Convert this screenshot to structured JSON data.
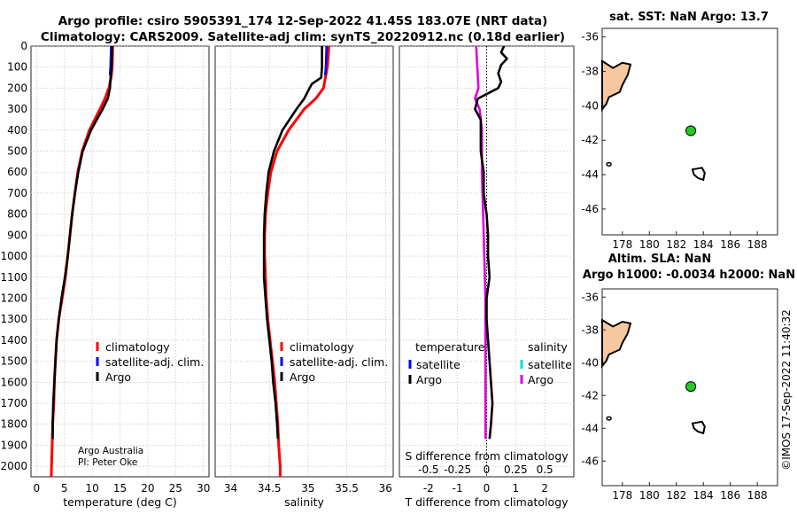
{
  "title": {
    "line1": "Argo profile: csiro 5905391_174 12-Sep-2022 41.45S 183.07E (NRT data)",
    "line2": "Climatology: CARS2009. Satellite-adj clim: synTS_20220912.nc (0.18d earlier)"
  },
  "colors": {
    "argo": "#000000",
    "clim": "#ff0000",
    "sat": "#0000ff",
    "t_diff": "#000000",
    "s_diff": "#dd00dd",
    "s_sat": "#00dddd",
    "land": "#f7c89f",
    "float": "#22cc22"
  },
  "chart_data": [
    {
      "id": "temperature",
      "type": "line",
      "xlabel": "temperature (deg C)",
      "xlim": [
        -1,
        31
      ],
      "xticks": [
        0,
        5,
        10,
        15,
        20,
        25,
        30
      ],
      "ylim": [
        0,
        2050
      ],
      "yticks": [
        0,
        100,
        200,
        300,
        400,
        500,
        600,
        700,
        800,
        900,
        1000,
        1100,
        1200,
        1300,
        1400,
        1500,
        1600,
        1700,
        1800,
        1900,
        2000
      ],
      "legend": [
        "climatology",
        "satellite-adj. clim.",
        "Argo"
      ],
      "note": [
        "Argo Australia",
        "PI: Peter Oke"
      ],
      "series": [
        {
          "name": "climatology",
          "depth": [
            0,
            100,
            150,
            200,
            250,
            300,
            400,
            500,
            600,
            700,
            800,
            900,
            1000,
            1100,
            1200,
            1300,
            1400,
            1500,
            1600,
            1700,
            1800,
            1900,
            2000,
            2050
          ],
          "values": [
            13.7,
            13.6,
            13.4,
            13.0,
            12.3,
            11.4,
            9.5,
            8.2,
            7.4,
            6.9,
            6.4,
            6.0,
            5.6,
            5.2,
            4.6,
            4.0,
            3.6,
            3.4,
            3.2,
            3.1,
            2.9,
            2.8,
            2.7,
            2.65
          ]
        },
        {
          "name": "satellite-adj. clim.",
          "depth": [
            0,
            100,
            140
          ],
          "values": [
            13.4,
            13.3,
            13.2
          ]
        },
        {
          "name": "Argo",
          "depth": [
            0,
            100,
            150,
            200,
            250,
            300,
            400,
            500,
            600,
            700,
            800,
            900,
            1000,
            1100,
            1200,
            1300,
            1400,
            1500,
            1600,
            1700,
            1800,
            1870
          ],
          "values": [
            13.6,
            13.5,
            13.3,
            13.2,
            12.8,
            11.9,
            9.8,
            8.3,
            7.5,
            6.9,
            6.4,
            6.0,
            5.6,
            5.1,
            4.5,
            4.0,
            3.6,
            3.4,
            3.2,
            3.0,
            2.9,
            2.9
          ]
        }
      ]
    },
    {
      "id": "salinity",
      "type": "line",
      "xlabel": "salinity",
      "xlim": [
        33.8,
        36.1
      ],
      "xticks": [
        34,
        34.5,
        35,
        35.5,
        36
      ],
      "ylim": [
        0,
        2050
      ],
      "legend": [
        "climatology",
        "satellite-adj. clim.",
        "Argo"
      ],
      "series": [
        {
          "name": "climatology",
          "depth": [
            0,
            100,
            200,
            250,
            300,
            400,
            500,
            600,
            700,
            800,
            900,
            1000,
            1100,
            1200,
            1300,
            1400,
            1500,
            1600,
            1700,
            1800,
            1900,
            2000,
            2050
          ],
          "values": [
            35.27,
            35.25,
            35.2,
            35.1,
            34.95,
            34.75,
            34.6,
            34.52,
            34.48,
            34.45,
            34.44,
            34.44,
            34.45,
            34.46,
            34.48,
            34.51,
            34.54,
            34.57,
            34.59,
            34.61,
            34.62,
            34.64,
            34.64
          ]
        },
        {
          "name": "satellite-adj. clim.",
          "depth": [
            0,
            100,
            140
          ],
          "values": [
            35.24,
            35.23,
            35.22
          ]
        },
        {
          "name": "Argo",
          "depth": [
            0,
            100,
            150,
            180,
            200,
            250,
            300,
            400,
            500,
            600,
            700,
            800,
            900,
            1000,
            1100,
            1200,
            1300,
            1400,
            1500,
            1600,
            1700,
            1800,
            1870
          ],
          "values": [
            35.18,
            35.18,
            35.17,
            35.05,
            35.02,
            34.95,
            34.85,
            34.67,
            34.56,
            34.49,
            34.46,
            34.44,
            34.43,
            34.43,
            34.43,
            34.45,
            34.47,
            34.5,
            34.53,
            34.55,
            34.58,
            34.6,
            34.61
          ]
        }
      ]
    },
    {
      "id": "difference",
      "type": "line",
      "xlabel": "T difference from climatology",
      "x2label": "S difference from climatology",
      "xlim": [
        -3,
        3
      ],
      "xticks": [
        -2,
        -1,
        0,
        1,
        2
      ],
      "x2ticks": [
        "-0.5",
        "-0.25",
        "0",
        "0.25",
        "0.5"
      ],
      "x2tick_values": [
        -0.5,
        -0.25,
        0,
        0.25,
        0.5
      ],
      "x2lim": [
        -0.75,
        0.75
      ],
      "ylim": [
        0,
        2050
      ],
      "legend_t_title": "temperature",
      "legend_s_title": "salinity",
      "legend_t": [
        "satellite",
        "Argo"
      ],
      "legend_s": [
        "satellite",
        "Argo"
      ],
      "series": [
        {
          "name": "T diff Argo",
          "depth": [
            0,
            30,
            60,
            90,
            130,
            170,
            200,
            250,
            300,
            350,
            400,
            500,
            600,
            700,
            800,
            900,
            1000,
            1100,
            1200,
            1300,
            1400,
            1500,
            1600,
            1700,
            1800,
            1870
          ],
          "values": [
            0.6,
            0.5,
            0.7,
            0.5,
            0.4,
            0.5,
            0.4,
            -0.3,
            -0.4,
            -0.2,
            -0.2,
            -0.2,
            -0.1,
            -0.1,
            0.0,
            0.05,
            0.05,
            0.1,
            0.0,
            0.0,
            0.05,
            0.1,
            0.15,
            0.2,
            0.15,
            0.1
          ]
        },
        {
          "name": "S diff Argo",
          "depth": [
            0,
            100,
            200,
            250,
            300,
            400,
            500,
            600,
            800,
            1000,
            1200,
            1400,
            1600,
            1800,
            1870
          ],
          "values": [
            -0.09,
            -0.08,
            -0.07,
            -0.1,
            -0.06,
            -0.04,
            -0.04,
            -0.04,
            -0.03,
            -0.02,
            -0.01,
            -0.01,
            -0.01,
            -0.01,
            -0.01
          ]
        }
      ]
    },
    {
      "id": "map_sst",
      "type": "scatter",
      "title": "sat. SST: NaN Argo: 13.7",
      "xlim": [
        176.5,
        189.5
      ],
      "ylim": [
        -47.5,
        -35.5
      ],
      "xticks": [
        178,
        180,
        182,
        184,
        186,
        188
      ],
      "yticks": [
        -36,
        -38,
        -40,
        -42,
        -44,
        -46
      ],
      "float": {
        "lon": 183.07,
        "lat": -41.45
      }
    },
    {
      "id": "map_sla",
      "type": "scatter",
      "title": "Altim. SLA: NaN",
      "subtitle": "Argo h1000: -0.0034 h2000: NaN",
      "xlim": [
        176.5,
        189.5
      ],
      "ylim": [
        -47.5,
        -35.5
      ],
      "xticks": [
        178,
        180,
        182,
        184,
        186,
        188
      ],
      "yticks": [
        -36,
        -38,
        -40,
        -42,
        -44,
        -46
      ],
      "float": {
        "lon": 183.07,
        "lat": -41.45
      }
    }
  ],
  "copyright": "©IMOS 17-Sep-2022 11:40:32"
}
